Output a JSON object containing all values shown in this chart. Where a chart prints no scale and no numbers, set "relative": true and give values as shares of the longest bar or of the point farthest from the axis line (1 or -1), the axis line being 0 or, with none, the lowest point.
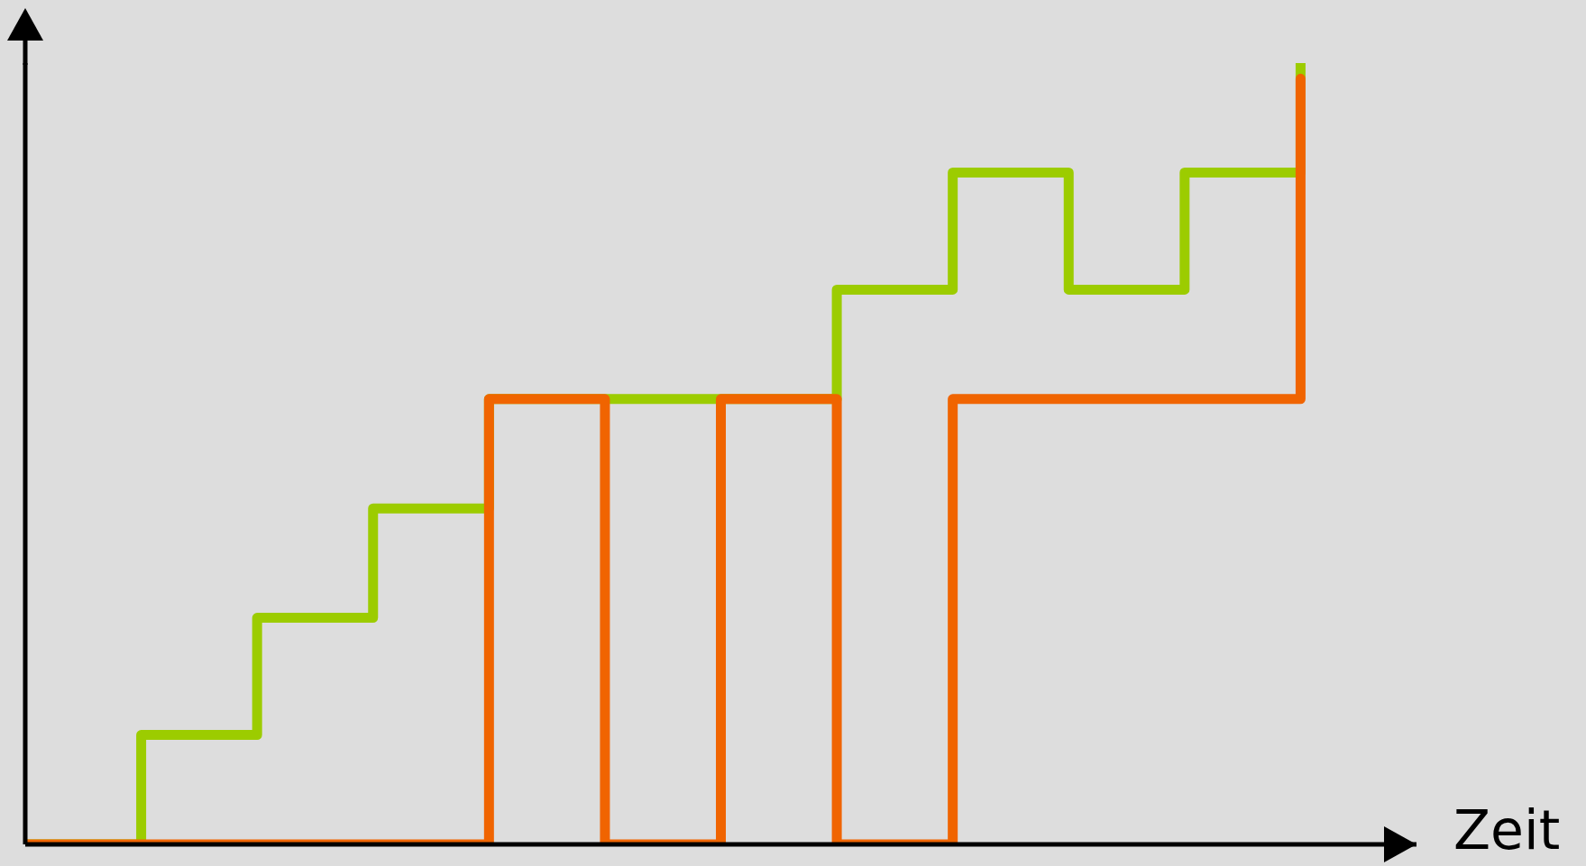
{
  "chart_data": {
    "type": "step",
    "relative": true,
    "xlabel": "Zeit",
    "categories": [
      null,
      null,
      null,
      null,
      null,
      null,
      null,
      null,
      null,
      null,
      null,
      null,
      null
    ],
    "series": [
      {
        "color": "#9ccc00",
        "values": [
          0,
          0.14,
          0.29,
          0.43,
          0.57,
          0.57,
          0.57,
          0.71,
          0.86,
          0.71,
          0.86,
          1,
          null
        ]
      },
      {
        "color": "#f06400",
        "values": [
          0,
          0,
          0,
          0,
          0.57,
          0,
          0.57,
          0,
          0.57,
          0.57,
          0.57,
          0.98,
          null
        ]
      }
    ]
  }
}
